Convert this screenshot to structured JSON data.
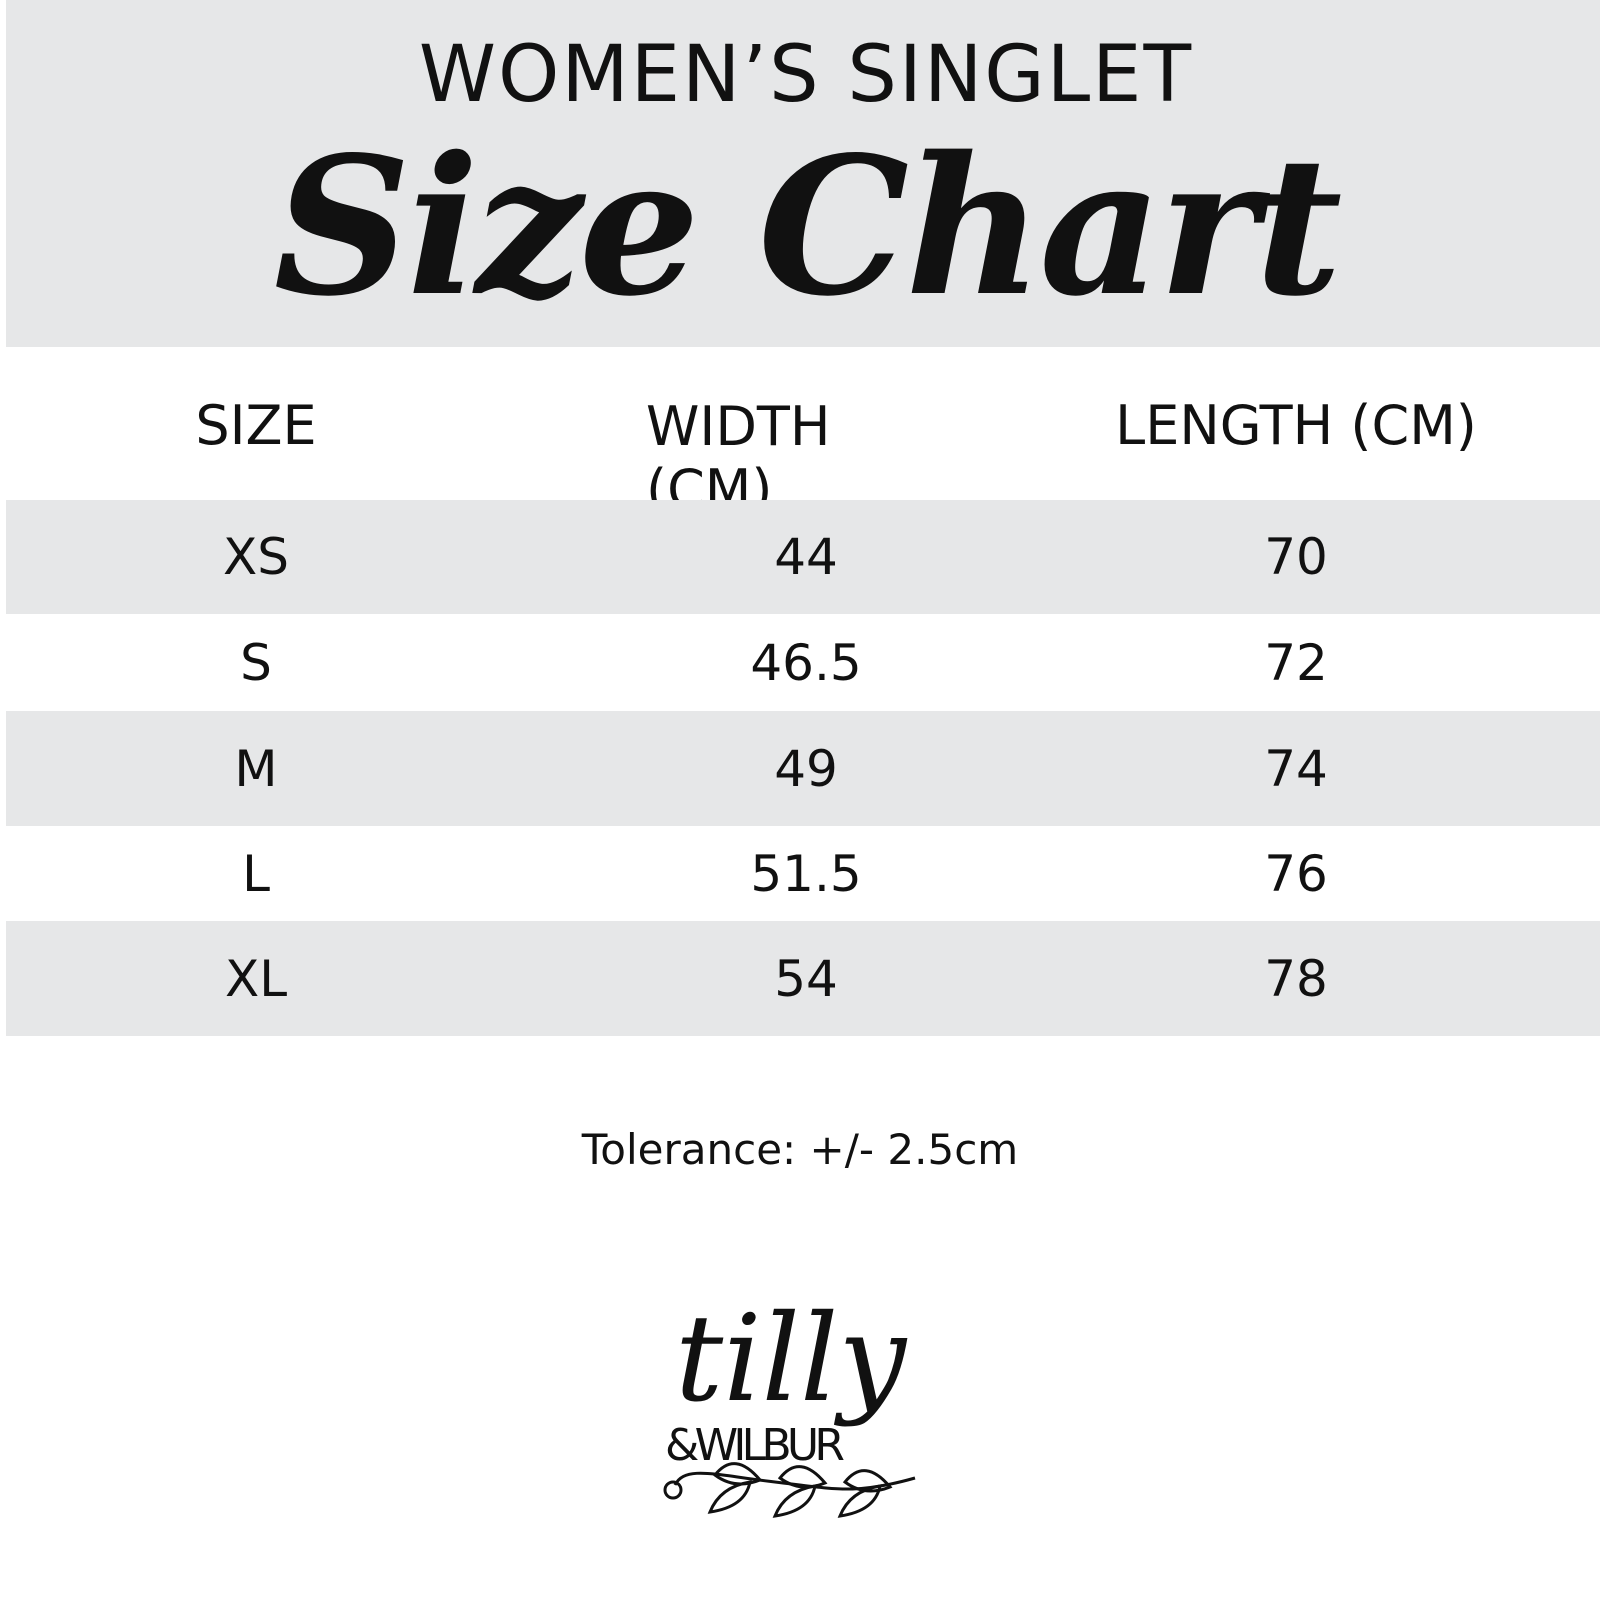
{
  "header": {
    "subtitle": "WOMEN’S SINGLET",
    "title": "Size Chart"
  },
  "table": {
    "columns": [
      "SIZE",
      "WIDTH (CM)",
      "LENGTH (CM)"
    ],
    "rows": [
      [
        "XS",
        "44",
        "70"
      ],
      [
        "S",
        "46.5",
        "72"
      ],
      [
        "M",
        "49",
        "74"
      ],
      [
        "L",
        "51.5",
        "76"
      ],
      [
        "XL",
        "54",
        "78"
      ]
    ]
  },
  "footer": {
    "tolerance": "Tolerance: +/- 2.5cm",
    "logo_text": "tilly & WILBUR"
  },
  "colors": {
    "band": "#e6e7e8",
    "text": "#111111"
  }
}
